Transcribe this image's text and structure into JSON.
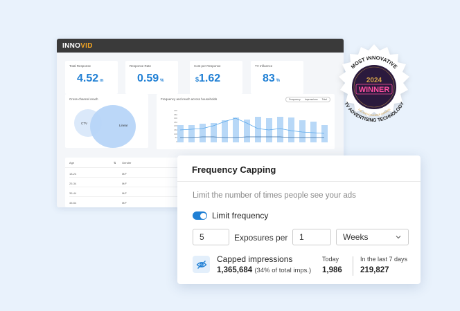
{
  "dashboard": {
    "logo_left": "INNO",
    "logo_right": "VID",
    "kpis": [
      {
        "label": "Total Response",
        "prefix": "",
        "value": "4.52",
        "suffix": "m"
      },
      {
        "label": "Response Rate",
        "prefix": "",
        "value": "0.59",
        "suffix": "%"
      },
      {
        "label": "Cost per Response",
        "prefix": "$",
        "value": "1.62",
        "suffix": ""
      },
      {
        "label": "TV Influence",
        "prefix": "",
        "value": "83",
        "suffix": "%"
      }
    ],
    "venn": {
      "title": "Cross-channel reach",
      "left_label": "CTV",
      "right_label": "Linear"
    },
    "freq_chart": {
      "title": "Frequency and reach across households",
      "legend": [
        "Frequency",
        "Impressions",
        "Total"
      ],
      "y_ticks": [
        "400",
        "350",
        "300",
        "250",
        "200",
        "150",
        "100",
        "50",
        "0"
      ]
    },
    "table": {
      "headers": [
        "Age",
        "Gender"
      ],
      "rows": [
        {
          "age": "18-24",
          "gender": "M/F"
        },
        {
          "age": "25-34",
          "gender": "M/F"
        },
        {
          "age": "35-44",
          "gender": "M/F"
        },
        {
          "age": "45-54",
          "gender": "M/F"
        }
      ]
    }
  },
  "badge": {
    "top": "MOST INNOVATIVE",
    "year": "2024",
    "winner": "WINNER",
    "ring": "THE ADEXCHANGER AWARDS",
    "bottom": "TV ADVERTISING TECHNOLOGY",
    "colors": {
      "disc": "#2b1a3d",
      "winner": "#ff4fa0",
      "gold": "#d4a24a"
    }
  },
  "panel": {
    "title": "Frequency Capping",
    "description": "Limit the number of times people see your ads",
    "toggle_label": "Limit frequency",
    "toggle_on": true,
    "exposures_value": "5",
    "exposures_label": "Exposures per",
    "period_value": "1",
    "period_unit": "Weeks",
    "capped": {
      "title": "Capped impressions",
      "value": "1,365,684",
      "sub": "(34% of total imps.)",
      "icon": "eye-off-icon"
    },
    "today": {
      "label": "Today",
      "value": "1,986"
    },
    "last7": {
      "label": "In the last 7 days",
      "value": "219,827"
    },
    "accent": "#1f7fd4"
  }
}
